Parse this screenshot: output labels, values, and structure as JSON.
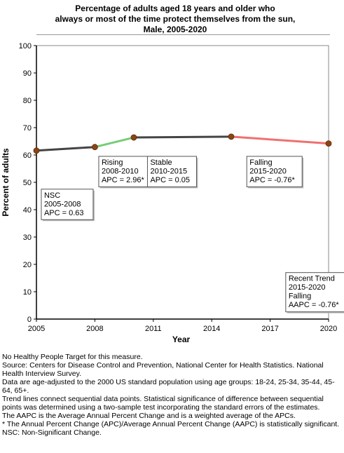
{
  "chart_data": {
    "type": "line",
    "title_lines": [
      "Percentage of adults aged 18 years and older who",
      "always or most of the time protect themselves from the sun,",
      "Male,  2005-2020"
    ],
    "xlabel": "Year",
    "ylabel": "Percent of adults",
    "xlim": [
      2005,
      2020
    ],
    "ylim": [
      0,
      100
    ],
    "x_ticks": [
      2005,
      2008,
      2011,
      2014,
      2017,
      2020
    ],
    "y_ticks": [
      0,
      10,
      20,
      30,
      40,
      50,
      60,
      70,
      80,
      90,
      100
    ],
    "points": [
      {
        "x": 2005,
        "y": 61.6
      },
      {
        "x": 2008,
        "y": 62.9
      },
      {
        "x": 2010,
        "y": 66.4
      },
      {
        "x": 2015,
        "y": 66.7
      },
      {
        "x": 2020,
        "y": 64.2
      }
    ],
    "segments": [
      {
        "from": 0,
        "to": 1,
        "trend": "NSC",
        "color": "#444444"
      },
      {
        "from": 1,
        "to": 2,
        "trend": "Rising",
        "color": "#77cc77"
      },
      {
        "from": 2,
        "to": 3,
        "trend": "Stable",
        "color": "#444444"
      },
      {
        "from": 3,
        "to": 4,
        "trend": "Falling",
        "color": "#f07070"
      }
    ],
    "annotations": [
      {
        "lines": [
          "NSC",
          "2005-2008",
          "APC =  0.63"
        ]
      },
      {
        "lines": [
          "Rising",
          "2008-2010",
          "APC =  2.96*"
        ]
      },
      {
        "lines": [
          "Stable",
          "2010-2015",
          "APC =  0.05"
        ]
      },
      {
        "lines": [
          "Falling",
          "2015-2020",
          "APC = -0.76*"
        ]
      },
      {
        "lines": [
          "Recent Trend",
          "2015-2020",
          "Falling",
          "AAPC = -0.76*"
        ]
      }
    ],
    "marker_color": "#8b4513",
    "grid": false
  },
  "notes": [
    "No Healthy People Target for this measure.",
    "Source: Centers for Disease Control and Prevention, National Center for Health Statistics. National Health Interview Survey.",
    "Data are age-adjusted to the 2000 US standard population using age groups: 18-24, 25-34, 35-44, 45-64, 65+.",
    "Trend lines connect sequential data points. Statistical significance of difference between sequential points was determined using a two-sample test incorporating the standard errors of the estimates.",
    "The AAPC is the Average Annual Percent Change and is a weighted average of the APCs.",
    "* The Annual Percent Change (APC)/Average Annual Percent Change (AAPC) is statistically significant.",
    "NSC: Non-Significant Change."
  ]
}
